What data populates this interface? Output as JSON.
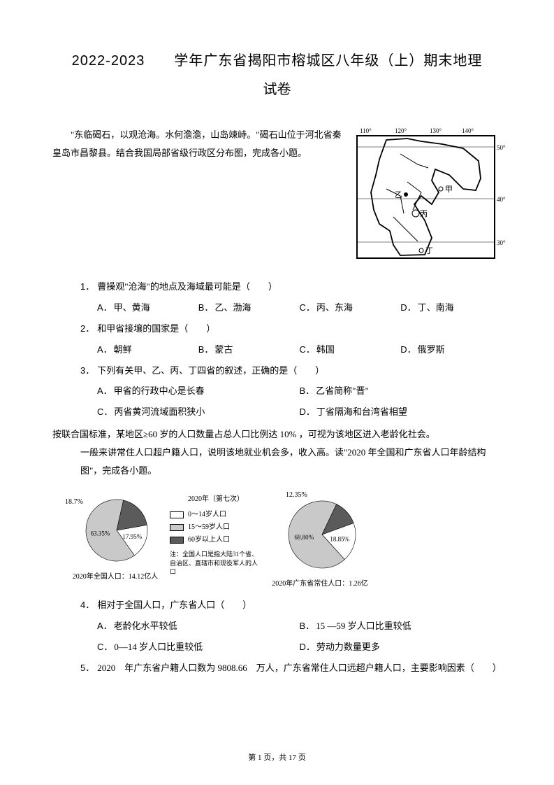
{
  "title_l1": "2022-2023　　学年广东省揭阳市榕城区八年级（上）期末地理",
  "title_l2": "试卷",
  "intro1": "　　\"东临碣石，以观沧海。水何澹澹，山岛竦峙。\"碣石山位于河北省秦皇岛市昌黎县。结合我国局部省级行政区分布图，完成各小题。",
  "map": {
    "lon_labels": [
      "110°",
      "120°",
      "130°",
      "140°"
    ],
    "lat_labels": [
      "50°",
      "40°",
      "30°"
    ],
    "markers": [
      "甲",
      "乙",
      "丙",
      "丁"
    ]
  },
  "q1": {
    "num": "1．",
    "text": "曹操观\"沧海\"的地点及海域最可能是（　　）",
    "opts": {
      "A": "甲、黄海",
      "B": "乙、渤海",
      "C": "丙、东海",
      "D": "丁、南海"
    }
  },
  "q2": {
    "num": "2．",
    "text": "和甲省接壤的国家是（　　）",
    "opts": {
      "A": "朝鲜",
      "B": "蒙古",
      "C": "韩国",
      "D": "俄罗斯"
    }
  },
  "q3": {
    "num": "3．",
    "text": "下列有关甲、乙、丙、丁四省的叙述，正确的是（　　）",
    "opts": {
      "A": "甲省的行政中心是长春",
      "B": "乙省简称\"晋\"",
      "C": "丙省黄河流域面积狭小",
      "D": "丁省隔海和台湾省相望"
    }
  },
  "intro2_a": "按联合国标准，某地区≥60 岁的人口数量占总人口比例达 10% ，可视为该地区进入老龄化社会。",
  "intro2_b": "一般来讲常住人口超户籍人口，说明该地就业机会多，收入高。读\"2020 年全国和广东省人口年龄结构图\"，完成各小题。",
  "chart1": {
    "type": "pie",
    "title_tl": "18.7%",
    "slices": [
      {
        "label": "17.95%",
        "value": 17.95,
        "color": "#ffffff"
      },
      {
        "label": "63.35%",
        "value": 63.35,
        "color": "#c9c9c9"
      },
      {
        "label": "18.7%",
        "value": 18.7,
        "color": "#5b5b5b"
      }
    ],
    "caption": "2020年全国人口：14.12亿人"
  },
  "legend": {
    "title": "2020年（第七次）",
    "items": [
      {
        "swatch": "#ffffff",
        "label": "0～14岁人口"
      },
      {
        "swatch": "#c9c9c9",
        "label": "15～59岁人口"
      },
      {
        "swatch": "#5b5b5b",
        "label": "60岁以上人口"
      }
    ],
    "note": "注：全国人口是指大陆31个省、自治区、直辖市和现役军人的人口"
  },
  "chart2": {
    "type": "pie",
    "title_tl": "12.35%",
    "slices": [
      {
        "label": "18.85%",
        "value": 18.85,
        "color": "#ffffff"
      },
      {
        "label": "68.80%",
        "value": 68.8,
        "color": "#c9c9c9"
      },
      {
        "label": "12.35%",
        "value": 12.35,
        "color": "#5b5b5b"
      }
    ],
    "caption": "2020年广东省常住人口：1.26亿"
  },
  "q4": {
    "num": "4．",
    "text": "相对于全国人口，广东省人口（　　）",
    "opts": {
      "A": "老龄化水平较低",
      "B": "15 —59 岁人口比重较低",
      "C": "0—14 岁人口比重较低",
      "D": "劳动力数量更多"
    }
  },
  "q5": {
    "num": "5．",
    "text": "2020　年广东省户籍人口数为 9808.66　万人，广东省常住人口远超户籍人口，主要影响因素（　　）"
  },
  "footer": "第 1 页，共 17 页"
}
